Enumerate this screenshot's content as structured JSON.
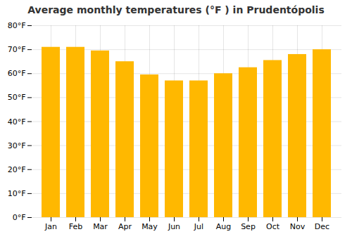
{
  "chart_data": {
    "type": "bar",
    "title": "Average monthly temperatures (°F ) in Prudentópolis",
    "categories": [
      "Jan",
      "Feb",
      "Mar",
      "Apr",
      "May",
      "Jun",
      "Jul",
      "Aug",
      "Sep",
      "Oct",
      "Nov",
      "Dec"
    ],
    "values": [
      71,
      71,
      69.5,
      65,
      59.5,
      57,
      57,
      60,
      62.5,
      65.5,
      68,
      70
    ],
    "color": "#FFB800",
    "ylim": [
      0,
      80
    ],
    "yticks": [
      {
        "value": 0,
        "label": "0°F"
      },
      {
        "value": 10,
        "label": "10°F"
      },
      {
        "value": 20,
        "label": "20°F"
      },
      {
        "value": 30,
        "label": "30°F"
      },
      {
        "value": 40,
        "label": "40°F"
      },
      {
        "value": 50,
        "label": "50°F"
      },
      {
        "value": 60,
        "label": "60°F"
      },
      {
        "value": 70,
        "label": "70°F"
      },
      {
        "value": 80,
        "label": "80°F"
      }
    ],
    "grid": true
  }
}
